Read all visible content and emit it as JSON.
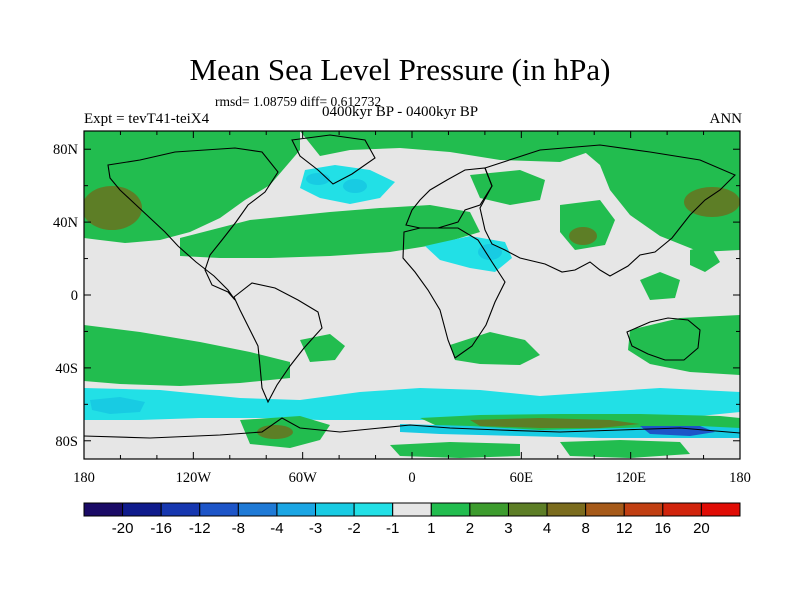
{
  "title": "Mean Sea Level Pressure (in hPa)",
  "stats": "rmsd= 1.08759  diff= 0.612732",
  "period": "0400kyr BP - 0400kyr BP",
  "experiment": "Expt = tevT41-teiX4",
  "season": "ANN",
  "x_ticks": [
    {
      "value": -180,
      "label": "180"
    },
    {
      "value": -120,
      "label": "120W"
    },
    {
      "value": -60,
      "label": "60W"
    },
    {
      "value": 0,
      "label": "0"
    },
    {
      "value": 60,
      "label": "60E"
    },
    {
      "value": 120,
      "label": "120E"
    },
    {
      "value": 180,
      "label": "180"
    }
  ],
  "y_ticks": [
    {
      "value": 80,
      "label": "80N"
    },
    {
      "value": 40,
      "label": "40N"
    },
    {
      "value": 0,
      "label": "0"
    },
    {
      "value": -40,
      "label": "40S"
    },
    {
      "value": -80,
      "label": "80S"
    }
  ],
  "colorbar": {
    "colors": [
      "#1a0a66",
      "#0f1b8c",
      "#1637b0",
      "#1d55c8",
      "#1f7ad6",
      "#1ba6e4",
      "#18cbe3",
      "#22e0e6",
      "#e6e6e6",
      "#22bd4f",
      "#3d9c2e",
      "#5d7e26",
      "#7b6c1e",
      "#a65a19",
      "#c13f12",
      "#d1240c",
      "#e00c05"
    ],
    "labels": [
      "-20",
      "-16",
      "-12",
      "-8",
      "-4",
      "-3",
      "-2",
      "-1",
      "1",
      "2",
      "3",
      "4",
      "8",
      "12",
      "16",
      "20"
    ]
  }
}
